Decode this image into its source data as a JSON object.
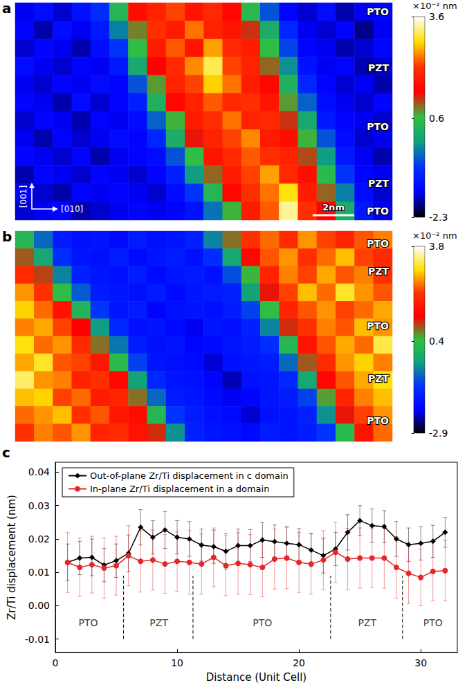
{
  "chart_data": [
    {
      "type": "heatmap",
      "label": "a",
      "cells": [
        [
          -1.6,
          -1.4,
          -1.7,
          -1.3,
          -0.9,
          0.4,
          1.6,
          1.9,
          2.2,
          1.7,
          2.0,
          1.5,
          0.5,
          -0.6,
          -1.5,
          -1.7,
          -1.4,
          -1.8,
          -1.6,
          -1.5
        ],
        [
          -1.5,
          -1.8,
          -1.4,
          -1.6,
          -1.2,
          -0.3,
          0.9,
          2.1,
          1.8,
          2.4,
          1.9,
          1.7,
          1.2,
          0.2,
          -1.0,
          -1.6,
          -1.7,
          -1.5,
          -1.9,
          -1.6
        ],
        [
          -1.7,
          -1.5,
          -1.6,
          -1.8,
          -1.4,
          -0.8,
          0.6,
          1.8,
          2.3,
          1.7,
          2.6,
          2.0,
          1.8,
          0.6,
          -0.7,
          -1.5,
          -1.6,
          -1.8,
          -1.7,
          -1.5
        ],
        [
          -1.4,
          -1.6,
          -1.7,
          -1.5,
          -1.6,
          -1.2,
          0.1,
          1.4,
          2.0,
          2.5,
          3.1,
          2.2,
          1.9,
          1.0,
          -0.2,
          -1.3,
          -1.6,
          -1.5,
          -1.8,
          -1.7
        ],
        [
          -1.6,
          -1.7,
          -1.5,
          -1.6,
          -1.4,
          -1.5,
          -0.6,
          0.8,
          1.9,
          2.2,
          2.8,
          2.4,
          1.8,
          1.5,
          0.3,
          -1.0,
          -1.5,
          -1.7,
          -1.6,
          -1.8
        ],
        [
          -1.5,
          -1.6,
          -1.8,
          -1.4,
          -1.7,
          -1.5,
          -1.1,
          0.3,
          1.5,
          1.9,
          2.3,
          2.0,
          2.1,
          1.7,
          0.8,
          -0.5,
          -1.4,
          -1.6,
          -1.7,
          -1.5
        ],
        [
          -1.7,
          -1.5,
          -1.6,
          -1.8,
          -1.5,
          -1.6,
          -1.4,
          -0.5,
          0.7,
          1.8,
          2.1,
          2.4,
          1.9,
          2.0,
          1.2,
          0.1,
          -1.2,
          -1.5,
          -1.6,
          -1.7
        ],
        [
          -1.6,
          -1.8,
          -1.5,
          -1.7,
          -1.6,
          -1.4,
          -1.5,
          -1.0,
          0.2,
          1.3,
          1.9,
          2.2,
          2.5,
          1.8,
          1.6,
          0.7,
          -0.6,
          -1.4,
          -1.7,
          -1.6
        ],
        [
          -1.5,
          -1.6,
          -1.7,
          -1.5,
          -1.8,
          -1.6,
          -1.5,
          -1.4,
          -0.6,
          0.6,
          1.7,
          2.0,
          2.3,
          2.1,
          1.9,
          1.1,
          -0.1,
          -1.2,
          -1.6,
          -1.8
        ],
        [
          -1.8,
          -1.5,
          -1.6,
          -1.7,
          -1.5,
          -1.6,
          -1.7,
          -1.5,
          -1.1,
          -0.1,
          1.0,
          1.8,
          2.2,
          2.6,
          2.0,
          1.6,
          0.5,
          -0.8,
          -1.5,
          -1.6
        ],
        [
          -1.6,
          -1.7,
          -1.8,
          -1.5,
          -1.6,
          -1.5,
          -1.6,
          -1.7,
          -1.4,
          -0.8,
          0.4,
          1.5,
          2.1,
          2.4,
          2.9,
          1.8,
          1.0,
          -0.3,
          -1.4,
          -1.7
        ],
        [
          -1.7,
          -1.6,
          -1.5,
          -1.8,
          -1.7,
          -1.6,
          -1.5,
          -1.6,
          -1.5,
          -1.3,
          -0.4,
          0.7,
          1.8,
          2.3,
          3.3,
          2.1,
          1.4,
          0.2,
          -1.2,
          -1.6
        ]
      ],
      "colorbar": {
        "lim": [
          -2.3,
          3.6
        ],
        "ticks": [
          -2.3,
          0.6,
          3.6
        ],
        "unit": "×10⁻² nm"
      },
      "layer_labels": [
        "PTO",
        "PZT",
        "PTO",
        "PZT",
        "PTO"
      ],
      "annotations": {
        "axis_vertical": "[001]",
        "axis_horizontal": "[010]",
        "scale_bar": "2nm"
      }
    },
    {
      "type": "heatmap",
      "label": "b",
      "cells": [
        [
          0.2,
          -0.8,
          -1.6,
          -1.8,
          -1.7,
          -1.9,
          -1.6,
          -1.8,
          -1.7,
          -1.5,
          -0.6,
          0.8,
          2.1,
          2.4,
          2.0,
          2.6,
          2.2,
          1.9,
          2.3,
          2.5
        ],
        [
          0.9,
          -0.2,
          -1.3,
          -1.7,
          -1.8,
          -1.6,
          -1.9,
          -1.7,
          -1.6,
          -1.8,
          -1.3,
          -0.2,
          1.4,
          2.3,
          2.6,
          2.1,
          2.4,
          2.8,
          2.2,
          2.0
        ],
        [
          2.0,
          1.0,
          -0.6,
          -1.5,
          -1.7,
          -1.8,
          -1.6,
          -1.9,
          -1.7,
          -1.6,
          -1.8,
          -1.0,
          0.5,
          1.9,
          2.5,
          2.2,
          2.7,
          2.3,
          2.5,
          2.1
        ],
        [
          2.6,
          2.1,
          0.4,
          -0.9,
          -1.6,
          -1.7,
          -1.8,
          -1.6,
          -1.9,
          -1.7,
          -1.6,
          -1.5,
          -0.3,
          1.2,
          2.2,
          2.8,
          2.4,
          3.1,
          2.6,
          2.3
        ],
        [
          2.9,
          2.4,
          1.6,
          0.1,
          -1.2,
          -1.7,
          -1.6,
          -2.0,
          -1.8,
          -1.7,
          -1.8,
          -1.6,
          -1.1,
          0.4,
          1.9,
          2.3,
          2.6,
          2.2,
          2.4,
          2.7
        ],
        [
          2.5,
          2.7,
          2.2,
          1.3,
          -0.4,
          -1.4,
          -1.8,
          -1.7,
          -1.9,
          -2.1,
          -1.7,
          -1.8,
          -1.5,
          -0.6,
          1.1,
          2.1,
          2.5,
          2.3,
          2.8,
          2.6
        ],
        [
          3.0,
          2.4,
          2.6,
          2.0,
          0.8,
          -0.7,
          -1.6,
          -1.8,
          -1.7,
          -2.0,
          -1.9,
          -1.7,
          -1.6,
          -1.3,
          0.2,
          1.6,
          2.3,
          2.7,
          2.4,
          3.2
        ],
        [
          2.7,
          3.1,
          2.3,
          2.2,
          1.7,
          0.3,
          -1.1,
          -1.7,
          -1.8,
          -1.9,
          -2.2,
          -1.8,
          -1.7,
          -1.6,
          -0.8,
          0.9,
          2.0,
          2.6,
          2.9,
          2.5
        ],
        [
          3.3,
          2.6,
          2.5,
          1.9,
          2.1,
          1.4,
          -0.3,
          -1.4,
          -1.7,
          -1.8,
          -2.0,
          -2.3,
          -1.8,
          -1.7,
          -1.4,
          -0.2,
          1.4,
          2.3,
          2.7,
          3.0
        ],
        [
          2.8,
          2.9,
          2.2,
          2.4,
          1.8,
          1.9,
          0.8,
          -0.8,
          -1.6,
          -1.7,
          -1.9,
          -2.1,
          -2.0,
          -1.7,
          -1.6,
          -1.1,
          0.6,
          1.9,
          2.5,
          2.8
        ],
        [
          2.4,
          2.6,
          2.8,
          2.1,
          2.3,
          1.7,
          1.5,
          0.2,
          -1.2,
          -1.6,
          -1.8,
          -1.9,
          -2.2,
          -1.8,
          -1.7,
          -1.5,
          -0.5,
          1.2,
          2.2,
          2.6
        ],
        [
          2.1,
          2.5,
          2.3,
          2.6,
          1.9,
          2.0,
          1.6,
          1.1,
          -0.5,
          -1.5,
          -1.7,
          -1.8,
          -1.9,
          -1.6,
          -1.7,
          -1.6,
          -1.2,
          0.3,
          1.6,
          2.4
        ]
      ],
      "colorbar": {
        "lim": [
          -2.9,
          3.8
        ],
        "ticks": [
          -2.9,
          0.4,
          3.8
        ],
        "unit": "×10⁻² nm"
      },
      "layer_labels": [
        "PTO",
        "PZT",
        "PTO",
        "PZT",
        "PTO"
      ]
    },
    {
      "type": "line",
      "label": "c",
      "x": [
        1,
        2,
        3,
        4,
        5,
        6,
        7,
        8,
        9,
        10,
        11,
        12,
        13,
        14,
        15,
        16,
        17,
        18,
        19,
        20,
        21,
        22,
        23,
        24,
        25,
        26,
        27,
        28,
        29,
        30,
        31,
        32
      ],
      "series": [
        {
          "name": "Out-of-plane Zr/Ti displacement in c domain",
          "color": "#000000",
          "marker": "diamond",
          "values": [
            0.013,
            0.0143,
            0.0145,
            0.0122,
            0.0135,
            0.0157,
            0.0235,
            0.0205,
            0.0227,
            0.0205,
            0.02,
            0.0182,
            0.0177,
            0.0163,
            0.018,
            0.018,
            0.0197,
            0.0192,
            0.0187,
            0.0183,
            0.0167,
            0.015,
            0.017,
            0.022,
            0.0255,
            0.024,
            0.0237,
            0.02,
            0.0183,
            0.0187,
            0.0193,
            0.022
          ],
          "errors": [
            0.0055,
            0.005,
            0.0055,
            0.005,
            0.005,
            0.0055,
            0.0053,
            0.005,
            0.0055,
            0.005,
            0.0052,
            0.0048,
            0.005,
            0.0053,
            0.005,
            0.0048,
            0.0052,
            0.005,
            0.005,
            0.0048,
            0.005,
            0.0052,
            0.005,
            0.0053,
            0.0045,
            0.005,
            0.0048,
            0.0052,
            0.005,
            0.005,
            0.0048,
            0.0045
          ]
        },
        {
          "name": "In-plane Zr/Ti displacement in a domain",
          "color": "#e4262a",
          "marker": "circle",
          "values": [
            0.013,
            0.0115,
            0.0123,
            0.0113,
            0.012,
            0.015,
            0.0133,
            0.0137,
            0.0125,
            0.0133,
            0.013,
            0.0125,
            0.0145,
            0.012,
            0.0127,
            0.0123,
            0.0115,
            0.014,
            0.0143,
            0.013,
            0.0125,
            0.0137,
            0.016,
            0.014,
            0.0143,
            0.0143,
            0.0143,
            0.0115,
            0.0097,
            0.0085,
            0.0103,
            0.0105
          ],
          "errors": [
            0.009,
            0.0088,
            0.0085,
            0.009,
            0.0088,
            0.009,
            0.0092,
            0.009,
            0.0088,
            0.009,
            0.0095,
            0.009,
            0.0088,
            0.009,
            0.0092,
            0.009,
            0.0088,
            0.009,
            0.0092,
            0.009,
            0.009,
            0.0088,
            0.009,
            0.0092,
            0.009,
            0.0088,
            0.009,
            0.0092,
            0.009,
            0.0085,
            0.0088,
            0.009
          ]
        }
      ],
      "xlabel": "Distance (Unit Cell)",
      "ylabel": "Zr/Ti displacement (nm)",
      "xlim": [
        0,
        33
      ],
      "xticks": [
        0,
        10,
        20,
        30
      ],
      "ylim": [
        -0.014,
        0.043
      ],
      "yticks": [
        -0.01,
        {
          "value": 0,
          "label": "0.00"
        },
        0.01,
        0.02,
        0.03,
        0.04
      ],
      "legend": "upper left",
      "dividers": {
        "x": [
          5.6,
          11.3,
          22.6,
          28.5
        ],
        "y": [
          -0.01,
          0.009
        ]
      },
      "regions": [
        {
          "label": "PTO",
          "x": 2.7,
          "y": -0.005
        },
        {
          "label": "PZT",
          "x": 8.5,
          "y": -0.005
        },
        {
          "label": "PTO",
          "x": 17.0,
          "y": -0.005
        },
        {
          "label": "PZT",
          "x": 25.6,
          "y": -0.005
        },
        {
          "label": "PTO",
          "x": 31.0,
          "y": -0.005
        }
      ]
    }
  ]
}
